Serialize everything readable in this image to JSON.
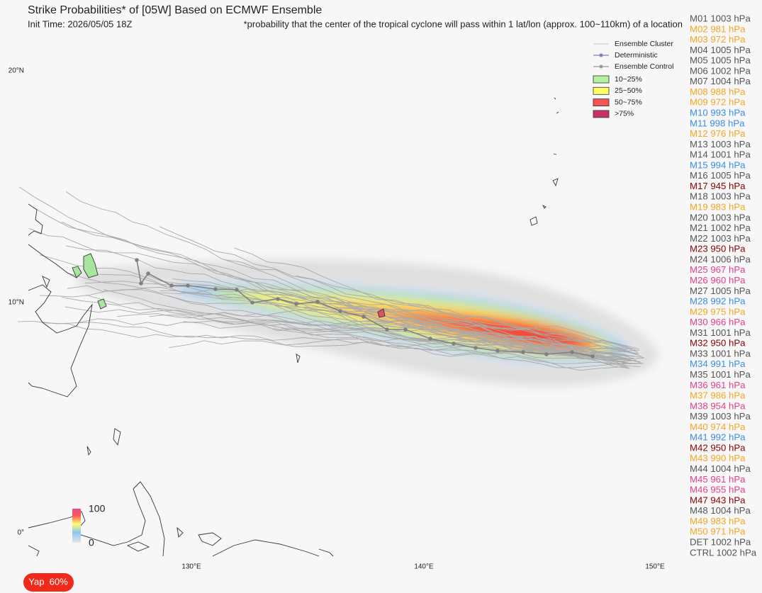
{
  "header": {
    "title": "Strike Probabilities* of [05W] Based on ECMWF Ensemble",
    "init_time": "Init Time: 2026/05/05 18Z",
    "footnote": "*probability that the center of the tropical cyclone will pass within 1 lat/lon (approx. 100~110km) of a location"
  },
  "legend": {
    "lines": [
      {
        "label": "Ensemble Cluster",
        "color": "#bbbbbb"
      },
      {
        "label": "Deterministic",
        "color": "#8080b8"
      },
      {
        "label": "Ensemble Control",
        "color": "#999999"
      }
    ],
    "swatches": [
      {
        "label": "10~25%",
        "color": "#b4f0a0"
      },
      {
        "label": "25~50%",
        "color": "#ffff66"
      },
      {
        "label": "50~75%",
        "color": "#f55555"
      },
      {
        "label": ">75%",
        "color": "#c8306a"
      }
    ]
  },
  "members": [
    {
      "label": "M01 1003 hPa",
      "color": "#555555"
    },
    {
      "label": "M02 981 hPa",
      "color": "#f5a623"
    },
    {
      "label": "M03 972 hPa",
      "color": "#f5a623"
    },
    {
      "label": "M04 1005 hPa",
      "color": "#555555"
    },
    {
      "label": "M05 1005 hPa",
      "color": "#555555"
    },
    {
      "label": "M06 1002 hPa",
      "color": "#555555"
    },
    {
      "label": "M07 1004 hPa",
      "color": "#555555"
    },
    {
      "label": "M08 988 hPa",
      "color": "#f5a623"
    },
    {
      "label": "M09 972 hPa",
      "color": "#f5a623"
    },
    {
      "label": "M10 993 hPa",
      "color": "#3a8ee6"
    },
    {
      "label": "M11 998 hPa",
      "color": "#3a8ee6"
    },
    {
      "label": "M12 976 hPa",
      "color": "#f5a623"
    },
    {
      "label": "M13 1003 hPa",
      "color": "#555555"
    },
    {
      "label": "M14 1001 hPa",
      "color": "#555555"
    },
    {
      "label": "M15 994 hPa",
      "color": "#3a8ee6"
    },
    {
      "label": "M16 1005 hPa",
      "color": "#555555"
    },
    {
      "label": "M17 945 hPa",
      "color": "#8b0000"
    },
    {
      "label": "M18 1003 hPa",
      "color": "#555555"
    },
    {
      "label": "M19 983 hPa",
      "color": "#f5a623"
    },
    {
      "label": "M20 1003 hPa",
      "color": "#555555"
    },
    {
      "label": "M21 1002 hPa",
      "color": "#555555"
    },
    {
      "label": "M22 1003 hPa",
      "color": "#555555"
    },
    {
      "label": "M23 950 hPa",
      "color": "#8b0000"
    },
    {
      "label": "M24 1006 hPa",
      "color": "#555555"
    },
    {
      "label": "M25 967 hPa",
      "color": "#e83e8c"
    },
    {
      "label": "M26 960 hPa",
      "color": "#e83e8c"
    },
    {
      "label": "M27 1005 hPa",
      "color": "#555555"
    },
    {
      "label": "M28 992 hPa",
      "color": "#3a8ee6"
    },
    {
      "label": "M29 975 hPa",
      "color": "#f5a623"
    },
    {
      "label": "M30 966 hPa",
      "color": "#e83e8c"
    },
    {
      "label": "M31 1001 hPa",
      "color": "#555555"
    },
    {
      "label": "M32 950 hPa",
      "color": "#8b0000"
    },
    {
      "label": "M33 1001 hPa",
      "color": "#555555"
    },
    {
      "label": "M34 991 hPa",
      "color": "#3a8ee6"
    },
    {
      "label": "M35 1001 hPa",
      "color": "#555555"
    },
    {
      "label": "M36 961 hPa",
      "color": "#e83e8c"
    },
    {
      "label": "M37 986 hPa",
      "color": "#f5a623"
    },
    {
      "label": "M38 954 hPa",
      "color": "#e83e8c"
    },
    {
      "label": "M39 1003 hPa",
      "color": "#555555"
    },
    {
      "label": "M40 974 hPa",
      "color": "#f5a623"
    },
    {
      "label": "M41 992 hPa",
      "color": "#3a8ee6"
    },
    {
      "label": "M42 950 hPa",
      "color": "#8b0000"
    },
    {
      "label": "M43 990 hPa",
      "color": "#f5a623"
    },
    {
      "label": "M44 1004 hPa",
      "color": "#555555"
    },
    {
      "label": "M45 961 hPa",
      "color": "#e83e8c"
    },
    {
      "label": "M46 955 hPa",
      "color": "#e83e8c"
    },
    {
      "label": "M47 943 hPa",
      "color": "#8b0000"
    },
    {
      "label": "M48 1004 hPa",
      "color": "#555555"
    },
    {
      "label": "M49 983 hPa",
      "color": "#f5a623"
    },
    {
      "label": "M50 971 hPa",
      "color": "#f5a623"
    },
    {
      "label": "DET 1002 hPa",
      "color": "#555555"
    },
    {
      "label": "CTRL 1002 hPa",
      "color": "#555555"
    }
  ],
  "axes": {
    "x": [
      "130°E",
      "140°E",
      "150°E"
    ],
    "y": [
      "20°N",
      "10°N",
      "0°"
    ]
  },
  "colorbar": {
    "max": 100,
    "min": 0
  },
  "badge": "Yap  60%"
}
